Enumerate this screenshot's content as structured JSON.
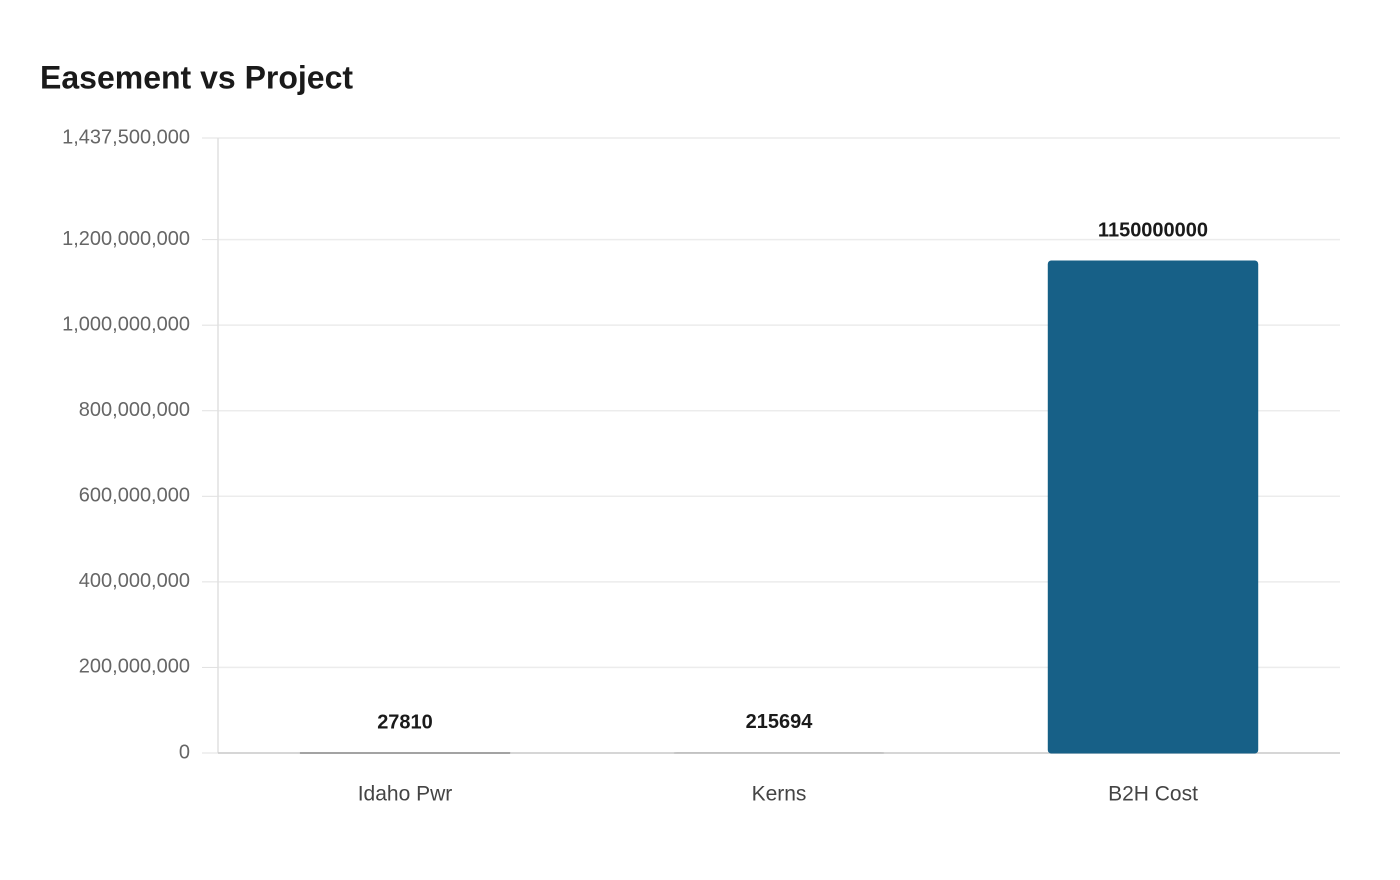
{
  "chart_data": {
    "type": "bar",
    "title": "Easement vs Project",
    "categories": [
      "Idaho Pwr",
      "Kerns",
      "B2H Cost"
    ],
    "values": [
      27810,
      215694,
      1150000000
    ],
    "colors": [
      "#666666",
      "#b0b0b0",
      "#176087"
    ],
    "ylim": [
      0,
      1437500000
    ],
    "yticks": [
      0,
      {
        "value": 200000000,
        "label": "200,000,000"
      },
      {
        "value": 400000000,
        "label": "400,000,000"
      },
      {
        "value": 600000000,
        "label": "600,000,000"
      },
      {
        "value": 800000000,
        "label": "800,000,000"
      },
      {
        "value": 1000000000,
        "label": "1,000,000,000"
      },
      {
        "value": 1200000000,
        "label": "1,200,000,000"
      },
      {
        "value": 1437500000,
        "label": "1,437,500,000"
      }
    ],
    "grid": true
  }
}
